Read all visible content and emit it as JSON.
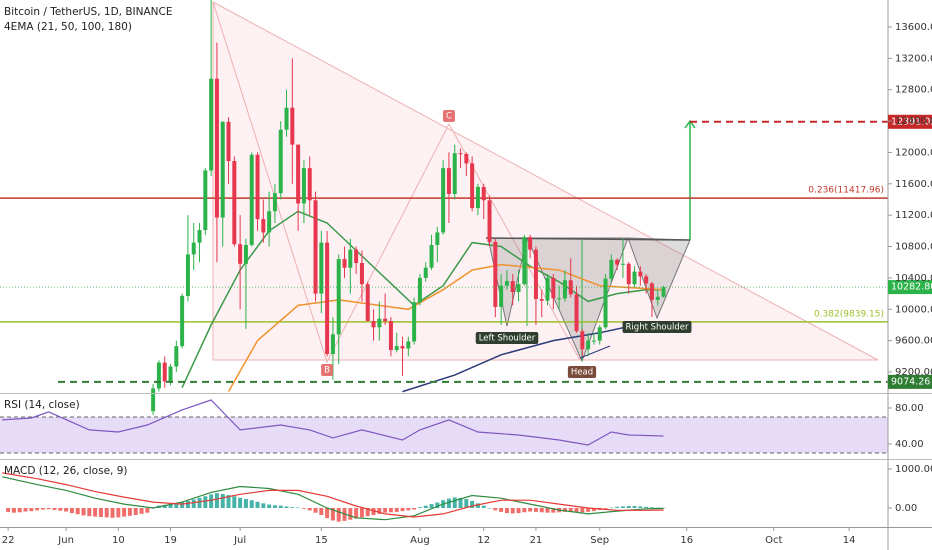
{
  "chart_data": [
    {
      "type": "candlestick",
      "title": "Bitcoin / TetherUS, 1D, BINANCE",
      "subtitle": "4EMA (21, 50, 100, 180)",
      "up_color": "#2bb34a",
      "down_color": "#e6374f",
      "x": [
        25,
        26,
        27,
        28,
        29,
        30,
        31,
        32,
        33,
        34,
        35,
        36,
        37,
        38,
        39,
        40,
        41,
        42,
        43,
        44,
        45,
        46,
        47,
        48,
        49,
        50,
        51,
        52,
        53,
        54,
        55,
        56,
        57,
        58,
        59,
        60,
        61,
        62,
        63,
        64,
        65,
        66,
        67,
        68,
        69,
        70,
        71,
        72,
        73,
        74,
        75,
        76,
        77,
        78,
        79,
        80,
        81,
        82,
        83,
        84,
        85,
        86,
        87,
        88,
        89,
        90,
        91,
        92,
        93,
        94,
        95,
        96,
        97,
        98,
        99,
        100,
        101,
        102,
        103,
        104,
        105,
        106,
        107,
        108,
        109,
        110,
        111,
        112,
        113
      ],
      "open": [
        8700,
        8990,
        9320,
        9080,
        9270,
        9530,
        10170,
        10700,
        10850,
        11010,
        11770,
        12940,
        11170,
        12390,
        11890,
        10830,
        10580,
        10820,
        11970,
        11150,
        10980,
        11250,
        11480,
        12290,
        12570,
        12100,
        11350,
        11800,
        11390,
        10200,
        10850,
        9430,
        9680,
        10640,
        10530,
        10760,
        10590,
        10320,
        9850,
        9770,
        9880,
        9850,
        9480,
        9530,
        9500,
        9590,
        10090,
        10400,
        10530,
        10820,
        10980,
        11800,
        11470,
        11990,
        11980,
        11860,
        11290,
        11560,
        11390,
        10860,
        10030,
        10300,
        10360,
        10220,
        10320,
        10920,
        10760,
        10130,
        10110,
        10400,
        10140,
        10140,
        10370,
        10190,
        9720,
        9490,
        9600,
        9600,
        9770,
        10390,
        10630,
        10570,
        10580,
        10320,
        10480,
        10420,
        10330,
        10120,
        10160
      ],
      "high": [
        9050,
        9350,
        9400,
        9300,
        9600,
        10200,
        11200,
        11100,
        11100,
        11800,
        13970,
        13400,
        12400,
        12450,
        11950,
        11200,
        10900,
        12000,
        12000,
        11400,
        11500,
        11600,
        12400,
        12800,
        13200,
        12100,
        11900,
        11950,
        11500,
        11000,
        11000,
        9900,
        10700,
        10800,
        10900,
        10800,
        10750,
        10350,
        10000,
        10100,
        10200,
        9900,
        9700,
        9650,
        9650,
        10150,
        10450,
        10600,
        10950,
        11050,
        11900,
        12000,
        12100,
        12050,
        12000,
        11950,
        11600,
        11600,
        11450,
        10900,
        10450,
        10500,
        10450,
        10500,
        10950,
        10950,
        10800,
        10250,
        10450,
        10450,
        10300,
        10500,
        10650,
        10300,
        9750,
        9700,
        9700,
        9800,
        10450,
        10700,
        10650,
        10900,
        10600,
        10550,
        10550,
        10450,
        10350,
        10250,
        10300
      ],
      "low": [
        8650,
        8950,
        9000,
        9030,
        9200,
        9500,
        10100,
        10500,
        10600,
        10950,
        11700,
        10600,
        10800,
        11600,
        10800,
        10000,
        9750,
        10800,
        11000,
        10850,
        10800,
        11100,
        11400,
        12200,
        11600,
        11000,
        11100,
        11200,
        10100,
        9950,
        9400,
        9100,
        9300,
        10400,
        10200,
        10450,
        10100,
        9850,
        9600,
        9600,
        9800,
        9400,
        9450,
        9150,
        9400,
        9550,
        10050,
        10350,
        10500,
        10600,
        10950,
        11100,
        11400,
        11800,
        11700,
        11250,
        11200,
        11150,
        10800,
        9900,
        9800,
        10250,
        10050,
        10100,
        10300,
        10650,
        9800,
        9900,
        10050,
        10000,
        10000,
        10100,
        10150,
        9700,
        9400,
        9400,
        9550,
        9550,
        9750,
        10350,
        10500,
        10400,
        10200,
        10280,
        10300,
        10200,
        9900,
        10050,
        10150
      ],
      "close": [
        8990,
        9320,
        9080,
        9270,
        9530,
        10170,
        10700,
        10850,
        11010,
        11770,
        12940,
        11170,
        12390,
        11890,
        10830,
        10580,
        10820,
        11970,
        11150,
        10980,
        11250,
        11480,
        12290,
        12570,
        12100,
        11350,
        11800,
        11390,
        10200,
        10850,
        9430,
        9680,
        10640,
        10530,
        10760,
        10590,
        10320,
        9850,
        9770,
        9880,
        9850,
        9480,
        9530,
        9500,
        9590,
        10090,
        10400,
        10530,
        10820,
        10980,
        11800,
        11470,
        11990,
        11980,
        11860,
        11290,
        11560,
        11390,
        10860,
        10030,
        10300,
        10360,
        10220,
        10320,
        10920,
        10760,
        10130,
        10110,
        10400,
        10140,
        10140,
        10370,
        10190,
        9720,
        9490,
        9600,
        9600,
        9770,
        10390,
        10630,
        10570,
        10580,
        10320,
        10480,
        10420,
        10330,
        10120,
        10160,
        10282.8
      ],
      "overlays": [
        {
          "color": "#3d9a4a",
          "x": [
            30,
            35,
            40,
            45,
            50,
            55,
            60,
            65,
            70,
            75,
            80,
            85,
            90,
            95,
            100,
            105,
            110,
            113
          ],
          "values": [
            9000,
            9800,
            10500,
            11000,
            11250,
            11100,
            10750,
            10400,
            10050,
            10300,
            10850,
            10800,
            10550,
            10350,
            10100,
            10200,
            10250,
            10250
          ]
        },
        {
          "color": "#f0922e",
          "x": [
            38,
            43,
            50,
            57,
            64,
            69,
            75,
            80,
            85,
            95,
            102,
            113
          ],
          "values": [
            8950,
            9600,
            10050,
            10120,
            10050,
            10000,
            10250,
            10500,
            10570,
            10500,
            10300,
            10250
          ]
        },
        {
          "color": "#2c3a7a",
          "x": [
            68,
            77,
            85,
            94,
            102,
            107,
            113
          ],
          "values": [
            8950,
            9160,
            9420,
            9600,
            9700,
            9780,
            9840
          ]
        }
      ],
      "levels": [
        {
          "value": 11417.96,
          "label": "0.236(11417.96)",
          "color": "#c0392b"
        },
        {
          "value": 9839.15,
          "label": "0.382(9839.15)",
          "color": "#9bbf2a"
        }
      ],
      "price_labels": [
        {
          "value": 12391.05,
          "label": "12391.05",
          "color": "#c62828",
          "dashed": true
        },
        {
          "value": 10282.8,
          "label": "10282.80",
          "color": "#2bb34a",
          "dashed": false
        },
        {
          "value": 9074.26,
          "label": "9074.26",
          "color": "#2e7d32",
          "dashed": true
        }
      ],
      "annotations": [
        {
          "text": "B"
        },
        {
          "text": "C"
        },
        {
          "text": "Left Shoulder"
        },
        {
          "text": "Head"
        },
        {
          "text": "Right Shoulder"
        }
      ],
      "xlim": [
        -1.4,
        151.7
      ],
      "xticks": [
        {
          "value": 0,
          "label": "22"
        },
        {
          "value": 10,
          "label": "Jun"
        },
        {
          "value": 19,
          "label": "10"
        },
        {
          "value": 28,
          "label": "19"
        },
        {
          "value": 40,
          "label": "Jul"
        },
        {
          "value": 54,
          "label": "15"
        },
        {
          "value": 71,
          "label": "Aug"
        },
        {
          "value": 82,
          "label": "12"
        },
        {
          "value": 91,
          "label": "21"
        },
        {
          "value": 102,
          "label": "Sep"
        },
        {
          "value": 117,
          "label": "16"
        },
        {
          "value": 132,
          "label": "Oct"
        },
        {
          "value": 145,
          "label": "14"
        }
      ],
      "ylim": [
        8945,
        13944
      ],
      "yticks": [
        {
          "value": 9200,
          "label": "9200.00"
        },
        {
          "value": 9600,
          "label": "9600.00"
        },
        {
          "value": 10000,
          "label": "10000.00"
        },
        {
          "value": 10400,
          "label": "10400.00"
        },
        {
          "value": 10800,
          "label": "10800.00"
        },
        {
          "value": 11200,
          "label": "11200.00"
        },
        {
          "value": 11600,
          "label": "11600.00"
        },
        {
          "value": 12000,
          "label": "12000.00"
        },
        {
          "value": 12400,
          "label": "12400.00"
        },
        {
          "value": 12800,
          "label": "12800.00"
        },
        {
          "value": 13200,
          "label": "13200.00"
        },
        {
          "value": 13600,
          "label": "13600.00"
        }
      ]
    },
    {
      "type": "line",
      "title": "RSI (14, close)",
      "color": "#7e57c2",
      "band": [
        30,
        70
      ],
      "band_color": "#e6dcf7",
      "x": [
        -1,
        4,
        7,
        14,
        19,
        24,
        30,
        35,
        40,
        47,
        52,
        56,
        61,
        68,
        71,
        76,
        81,
        88,
        95,
        100,
        104,
        107,
        113
      ],
      "values": [
        66.7,
        68.9,
        75.6,
        55.6,
        53.3,
        61.1,
        77.8,
        88.9,
        55.6,
        61.1,
        55.6,
        46.7,
        55.6,
        44.4,
        55.6,
        66.7,
        53.3,
        50,
        44.4,
        38.9,
        53.3,
        50,
        48.9
      ],
      "xlim": [
        -1.4,
        151.7
      ],
      "ylim": [
        24.4,
        93.3
      ],
      "yticks": [
        {
          "value": 40,
          "label": "40.00"
        },
        {
          "value": 80,
          "label": "80.00"
        }
      ]
    },
    {
      "type": "macd",
      "title": "MACD (12, 26, close, 9)",
      "up_color": "#26a69a",
      "down_color": "#ef5350",
      "histogram_x": [
        0,
        1,
        2,
        3,
        4,
        5,
        6,
        7,
        8,
        9,
        10,
        11,
        12,
        13,
        14,
        15,
        16,
        17,
        18,
        19,
        20,
        21,
        22,
        23,
        24,
        25,
        26,
        27,
        28,
        29,
        30,
        31,
        32,
        33,
        34,
        35,
        36,
        37,
        38,
        39,
        40,
        41,
        42,
        43,
        44,
        45,
        46,
        47,
        48,
        49,
        50,
        51,
        52,
        53,
        54,
        55,
        56,
        57,
        58,
        59,
        60,
        61,
        62,
        63,
        64,
        65,
        66,
        67,
        68,
        69,
        70,
        71,
        72,
        73,
        74,
        75,
        76,
        77,
        78,
        79,
        80,
        81,
        82,
        83,
        84,
        85,
        86,
        87,
        88,
        89,
        90,
        91,
        92,
        93,
        94,
        95,
        96,
        97,
        98,
        99,
        100,
        101,
        102,
        103,
        104,
        105,
        106,
        107,
        108,
        109,
        110,
        111,
        112,
        113
      ],
      "histogram": [
        -100,
        -120,
        -110,
        -90,
        -80,
        -60,
        -40,
        -30,
        -50,
        -70,
        -90,
        -130,
        -160,
        -190,
        -210,
        -220,
        -230,
        -240,
        -250,
        -240,
        -220,
        -200,
        -180,
        -150,
        -120,
        20,
        60,
        80,
        100,
        120,
        150,
        180,
        220,
        260,
        300,
        350,
        380,
        360,
        330,
        300,
        260,
        230,
        200,
        160,
        120,
        90,
        70,
        60,
        40,
        20,
        10,
        -20,
        -60,
        -120,
        -180,
        -260,
        -320,
        -350,
        -330,
        -300,
        -270,
        -240,
        -210,
        -180,
        -150,
        -120,
        -110,
        -100,
        -80,
        -60,
        -40,
        20,
        60,
        100,
        140,
        200,
        240,
        270,
        260,
        230,
        180,
        120,
        60,
        0,
        -60,
        -100,
        -130,
        -140,
        -130,
        -110,
        -90,
        -100,
        -110,
        -120,
        -120,
        -110,
        -100,
        -90,
        -100,
        -110,
        -100,
        -80,
        -50,
        -20,
        10,
        30,
        40,
        50,
        50,
        40,
        30,
        20,
        10,
        5
      ],
      "series": [
        {
          "color": "#2e8b3e",
          "x": [
            -1,
            5,
            10,
            15,
            20,
            25,
            30,
            35,
            40,
            45,
            50,
            55,
            60,
            65,
            70,
            75,
            80,
            85,
            90,
            95,
            100,
            105,
            110,
            113
          ],
          "values": [
            800,
            600,
            450,
            250,
            100,
            0,
            150,
            400,
            550,
            500,
            350,
            0,
            -250,
            -300,
            -200,
            100,
            320,
            250,
            100,
            -50,
            -150,
            -80,
            -20,
            -10
          ]
        },
        {
          "color": "#e53935",
          "x": [
            -1,
            5,
            10,
            15,
            20,
            25,
            30,
            35,
            40,
            45,
            50,
            55,
            60,
            65,
            70,
            75,
            80,
            85,
            90,
            95,
            100,
            105,
            110,
            113
          ],
          "values": [
            900,
            750,
            600,
            420,
            280,
            150,
            100,
            200,
            350,
            450,
            450,
            300,
            50,
            -150,
            -230,
            -150,
            50,
            200,
            200,
            100,
            0,
            -60,
            -60,
            -50
          ]
        }
      ],
      "xlim": [
        -1.4,
        151.7
      ],
      "ylim": [
        -487,
        1179
      ],
      "yticks": [
        {
          "value": 0,
          "label": "0.00"
        },
        {
          "value": 1000,
          "label": "1000.00"
        }
      ]
    }
  ]
}
